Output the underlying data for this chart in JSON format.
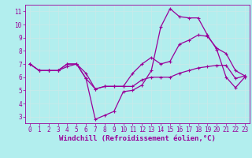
{
  "xlabel": "Windchill (Refroidissement éolien,°C)",
  "background_color": "#b2eeee",
  "grid_color": "#d0f0f0",
  "line_color": "#990099",
  "xlim": [
    -0.5,
    23.5
  ],
  "ylim": [
    2.5,
    11.5
  ],
  "xticks": [
    0,
    1,
    2,
    3,
    4,
    5,
    6,
    7,
    8,
    9,
    10,
    11,
    12,
    13,
    14,
    15,
    16,
    17,
    18,
    19,
    20,
    21,
    22,
    23
  ],
  "yticks": [
    3,
    4,
    5,
    6,
    7,
    8,
    9,
    10,
    11
  ],
  "line1_x": [
    0,
    1,
    2,
    3,
    4,
    5,
    6,
    7,
    8,
    9,
    10,
    11,
    12,
    13,
    14,
    15,
    16,
    17,
    18,
    19,
    20,
    21,
    22,
    23
  ],
  "line1_y": [
    7.0,
    6.5,
    6.5,
    6.5,
    7.0,
    7.0,
    5.9,
    2.8,
    3.1,
    3.4,
    4.9,
    5.0,
    5.4,
    6.5,
    9.8,
    11.2,
    10.6,
    10.5,
    10.5,
    9.2,
    8.1,
    6.0,
    5.2,
    6.0
  ],
  "line2_x": [
    0,
    1,
    2,
    3,
    4,
    5,
    6,
    7,
    8,
    9,
    10,
    11,
    12,
    13,
    14,
    15,
    16,
    17,
    18,
    19,
    20,
    21,
    22,
    23
  ],
  "line2_y": [
    7.0,
    6.5,
    6.5,
    6.5,
    6.8,
    7.0,
    6.3,
    5.1,
    5.3,
    5.3,
    5.3,
    6.3,
    7.0,
    7.5,
    7.0,
    7.2,
    8.5,
    8.8,
    9.2,
    9.1,
    8.2,
    7.8,
    6.5,
    6.1
  ],
  "line3_x": [
    0,
    1,
    2,
    3,
    4,
    5,
    6,
    7,
    8,
    9,
    10,
    11,
    12,
    13,
    14,
    15,
    16,
    17,
    18,
    19,
    20,
    21,
    22,
    23
  ],
  "line3_y": [
    7.0,
    6.5,
    6.5,
    6.5,
    7.0,
    7.0,
    5.9,
    5.1,
    5.3,
    5.3,
    5.3,
    5.3,
    5.8,
    6.0,
    6.0,
    6.0,
    6.3,
    6.5,
    6.7,
    6.8,
    6.9,
    6.9,
    5.9,
    6.1
  ],
  "markersize": 2.5,
  "linewidth": 0.9,
  "xlabel_fontsize": 6.5,
  "tick_fontsize": 5.5,
  "font_family": "monospace"
}
